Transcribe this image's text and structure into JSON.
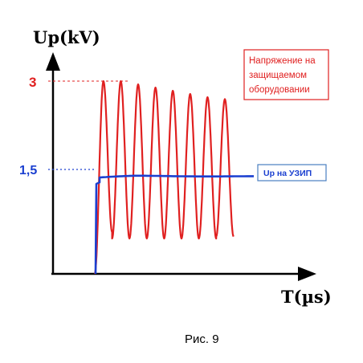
{
  "chart_data": {
    "type": "line",
    "ylabel": "Up(kV)",
    "xlabel": "T(µs)",
    "y_ticks": [
      "3",
      "1,5"
    ],
    "y_tick_values": [
      3,
      1.5
    ],
    "colors": {
      "protected_equipment": "#e02020",
      "spd": "#1a3fd0",
      "axis": "#000000"
    },
    "series": [
      {
        "name": "Напряжение на защищаемом оборудовании",
        "label_lines": [
          "Напряжение на",
          "защищаемом",
          "оборудовании"
        ],
        "color": "#e02020",
        "shape": "damped oscillation",
        "cycles": 8,
        "mean": 1.5,
        "peaks": [
          3.0,
          3.0,
          2.95,
          2.9,
          2.85,
          2.8,
          2.75,
          2.72
        ],
        "troughs": [
          0.65,
          0.55,
          0.55,
          0.55,
          0.55,
          0.55,
          0.55,
          0.58
        ]
      },
      {
        "name": "Up на УЗИП",
        "color": "#1a3fd0",
        "shape": "step to plateau",
        "plateau": 1.5
      }
    ]
  },
  "caption": "Рис. 9"
}
